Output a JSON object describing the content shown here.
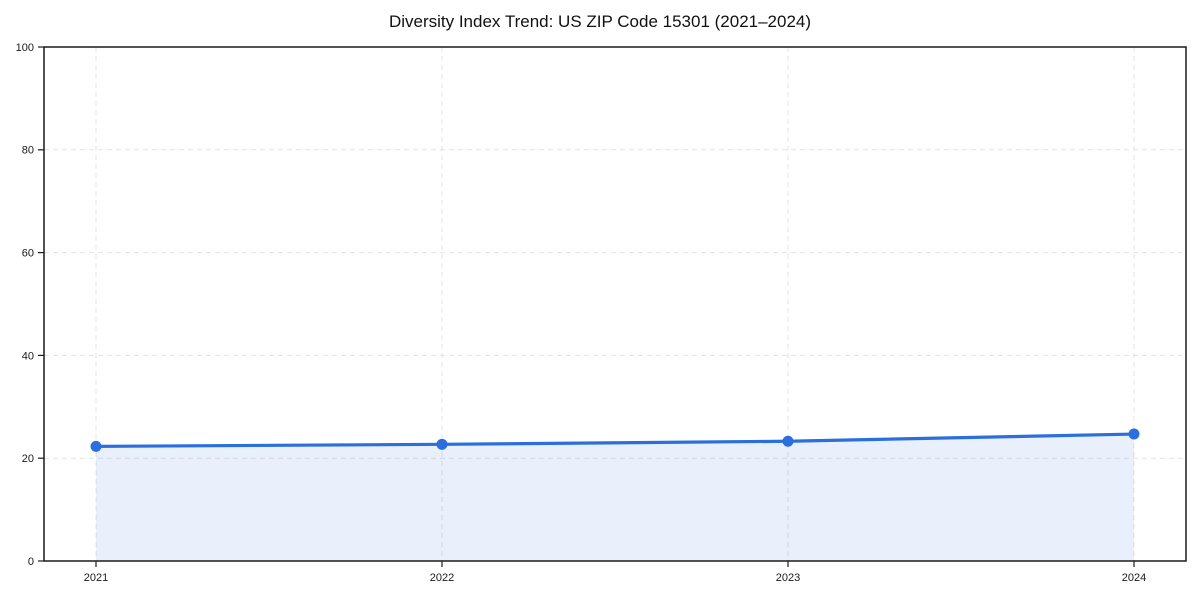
{
  "figure": {
    "background": "#ffffff"
  },
  "chart_data": {
    "type": "area",
    "title": "Diversity Index Trend: US ZIP Code 15301 (2021–2024)",
    "categories": [
      "2021",
      "2022",
      "2023",
      "2024"
    ],
    "series": [
      {
        "name": "Diversity Index",
        "values": [
          22.3,
          22.7,
          23.3,
          24.7
        ]
      }
    ],
    "xlabel": "",
    "ylabel": "",
    "ylim": [
      0,
      100
    ],
    "yticks": [
      0,
      20,
      40,
      60,
      80,
      100
    ],
    "grid": true,
    "grid_style": "dashed",
    "legend_position": "none",
    "marker": "circle",
    "area_fill": true,
    "colors": {
      "line": "#2a6fdb",
      "marker": "#2a6fdb",
      "area_fill": "rgba(42,111,219,0.10)",
      "grid": "#e3e3e3",
      "frame": "#1a1a1a",
      "tick": "#1a1a1a",
      "tick_label": "#1a1a1a",
      "title": "#111111"
    }
  }
}
